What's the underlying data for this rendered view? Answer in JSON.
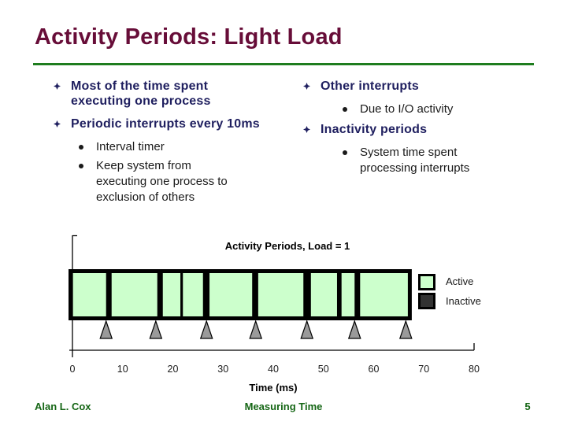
{
  "slide": {
    "title": "Activity Periods: Light Load",
    "footer": {
      "author": "Alan L. Cox",
      "title": "Measuring Time",
      "page": "5"
    }
  },
  "colors": {
    "title_maroon": "#670d38",
    "rule_green": "#1e7d1e",
    "body_navy": "#1f1f5f",
    "sub_text_black": "#1a1a1a",
    "active_green": "#ccffcc",
    "inactive_dark": "#323232",
    "separator_black": "#000000",
    "marker_gray": "#9a9a9a",
    "footer_green": "#156615"
  },
  "columns": {
    "left": [
      {
        "label": "Most of the time spent executing one process",
        "subs": []
      },
      {
        "label": "Periodic interrupts every 10ms",
        "subs": [
          "Interval timer",
          "Keep system from executing one process to exclusion of others"
        ]
      }
    ],
    "right": [
      {
        "label": "Other interrupts",
        "subs": [
          "Due to I/O activity"
        ]
      },
      {
        "label": "Inactivity periods",
        "subs": [
          "System time spent processing interrupts"
        ]
      }
    ]
  },
  "chart_data": {
    "type": "timeline",
    "title": "Activity Periods, Load = 1",
    "xlabel": "Time (ms)",
    "xlim": [
      0,
      80
    ],
    "x_ticks": [
      0,
      10,
      20,
      30,
      40,
      50,
      60,
      70,
      80
    ],
    "bar_span_ms": [
      0,
      67.2
    ],
    "legend": [
      {
        "label": "Active",
        "color": "#ccffcc"
      },
      {
        "label": "Inactive",
        "color": "#323232"
      }
    ],
    "inactive_periods_ms": [
      [
        6.7,
        7.8
      ],
      [
        16.9,
        18.0
      ],
      [
        21.5,
        22.0
      ],
      [
        26.0,
        27.3
      ],
      [
        35.8,
        37.0
      ],
      [
        46.0,
        47.5
      ],
      [
        52.7,
        53.6
      ],
      [
        56.2,
        57.3
      ]
    ],
    "interrupt_marker_times_ms": [
      6.7,
      16.6,
      26.7,
      36.5,
      46.7,
      56.2,
      66.4
    ]
  }
}
